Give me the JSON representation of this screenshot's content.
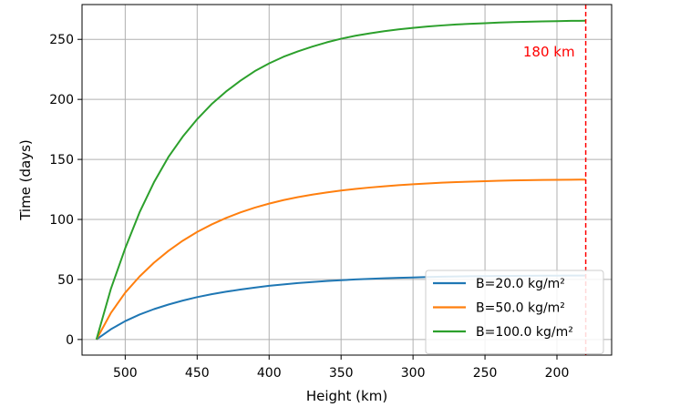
{
  "chart_data": {
    "type": "line",
    "xlabel": "Height (km)",
    "ylabel": "Time (days)",
    "x_inverted": true,
    "xlim": [
      530,
      162
    ],
    "ylim": [
      -13,
      279
    ],
    "xticks": [
      500,
      450,
      400,
      350,
      300,
      250,
      200
    ],
    "yticks": [
      0,
      50,
      100,
      150,
      200,
      250
    ],
    "grid": true,
    "legend_position": "lower-right",
    "series": [
      {
        "name": "B=20.0 kg/m²",
        "color": "#1f77b4",
        "x": [
          520,
          510,
          500,
          490,
          480,
          470,
          460,
          450,
          440,
          430,
          420,
          410,
          400,
          390,
          380,
          370,
          360,
          350,
          340,
          330,
          320,
          310,
          300,
          290,
          280,
          270,
          260,
          250,
          240,
          230,
          220,
          210,
          200,
          190,
          180
        ],
        "y": [
          0,
          8.5,
          15.3,
          20.8,
          25.3,
          29.1,
          32.4,
          35.3,
          37.7,
          39.8,
          41.6,
          43.2,
          44.7,
          45.9,
          47.0,
          47.9,
          48.7,
          49.4,
          50.0,
          50.5,
          51.0,
          51.4,
          51.7,
          52.0,
          52.3,
          52.5,
          52.7,
          52.8,
          52.9,
          53.0,
          53.1,
          53.2,
          53.2,
          53.3,
          53.3
        ]
      },
      {
        "name": "B=50.0 kg/m²",
        "color": "#ff7f0e",
        "x": [
          520,
          510,
          500,
          490,
          480,
          470,
          460,
          450,
          440,
          430,
          420,
          410,
          400,
          390,
          380,
          370,
          360,
          350,
          340,
          330,
          320,
          310,
          300,
          290,
          280,
          270,
          260,
          250,
          240,
          230,
          220,
          210,
          200,
          190,
          180
        ],
        "y": [
          0,
          22.0,
          39.0,
          52.5,
          64.0,
          73.8,
          82.3,
          89.6,
          95.8,
          101.2,
          105.8,
          109.8,
          113.2,
          116.1,
          118.6,
          120.7,
          122.5,
          124.1,
          125.4,
          126.6,
          127.6,
          128.5,
          129.3,
          130.0,
          130.6,
          131.1,
          131.5,
          131.9,
          132.2,
          132.5,
          132.7,
          132.9,
          133.0,
          133.1,
          133.2
        ]
      },
      {
        "name": "B=100.0 kg/m²",
        "color": "#2ca02c",
        "x": [
          520,
          510,
          500,
          490,
          480,
          470,
          460,
          450,
          440,
          430,
          420,
          410,
          400,
          390,
          380,
          370,
          360,
          350,
          340,
          330,
          320,
          310,
          300,
          290,
          280,
          270,
          260,
          250,
          240,
          230,
          220,
          210,
          200,
          190,
          180
        ],
        "y": [
          0,
          42.0,
          76.0,
          106.0,
          131.0,
          152.0,
          169.0,
          183.5,
          196.0,
          206.5,
          215.5,
          223.5,
          230.0,
          235.5,
          240.0,
          244.0,
          247.5,
          250.5,
          253.0,
          255.0,
          256.8,
          258.3,
          259.6,
          260.7,
          261.6,
          262.4,
          263.0,
          263.5,
          264.0,
          264.4,
          264.7,
          265.0,
          265.2,
          265.4,
          265.5
        ]
      }
    ],
    "reference_line": {
      "x": 180,
      "label": "180 km",
      "color": "#ff0000",
      "style": "dashed"
    }
  }
}
